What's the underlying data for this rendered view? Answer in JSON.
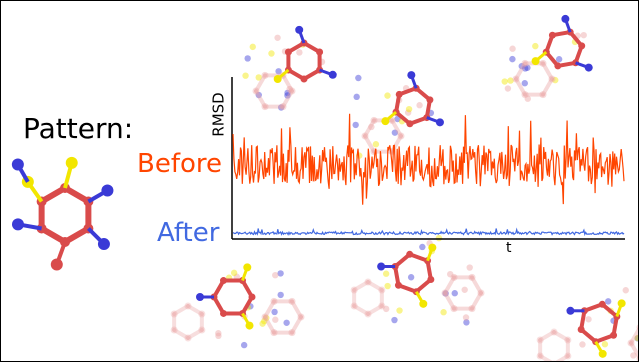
{
  "labels": {
    "pattern": "Pattern:",
    "before": "Before",
    "after": "After",
    "ylabel": "RMSD",
    "xlabel": "t"
  },
  "colors": {
    "before": "#ff4500",
    "after": "#4169e1",
    "ring": "#d94b4b",
    "ring_faded": "#eaa3a3",
    "sulfur": "#f2e600",
    "nitrogen": "#3a3ad6",
    "axis": "#000000"
  },
  "chart_data": {
    "type": "line",
    "xlabel": "t",
    "ylabel": "RMSD",
    "grid": false,
    "series": [
      {
        "name": "Before",
        "level": "high, strongly fluctuating"
      },
      {
        "name": "After",
        "level": "near zero, small fluctuations"
      }
    ]
  }
}
